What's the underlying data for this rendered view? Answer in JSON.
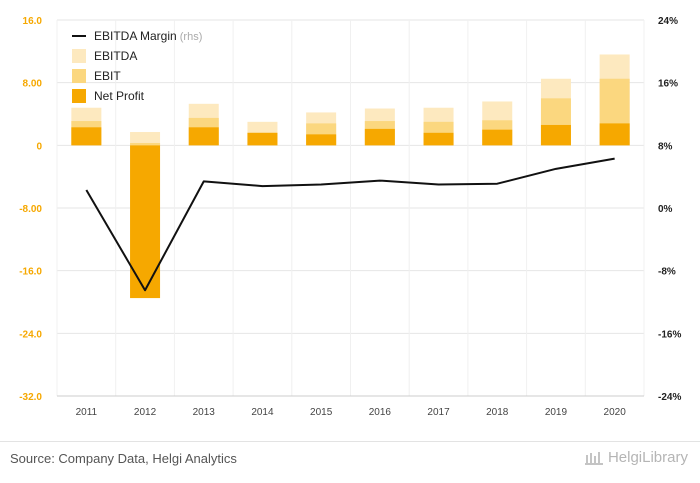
{
  "chart_data": {
    "type": "bar",
    "categories": [
      "2011",
      "2012",
      "2013",
      "2014",
      "2015",
      "2016",
      "2017",
      "2018",
      "2019",
      "2020"
    ],
    "series": [
      {
        "name": "Net Profit",
        "kind": "bar",
        "axis": "left",
        "color": "#f6a800",
        "values": [
          2.3,
          -19.5,
          2.3,
          1.6,
          1.4,
          2.1,
          1.6,
          2.0,
          2.6,
          2.8
        ]
      },
      {
        "name": "EBIT",
        "kind": "bar",
        "axis": "left",
        "color": "#fbd77f",
        "values": [
          3.1,
          0.3,
          3.5,
          1.6,
          2.8,
          3.1,
          3.0,
          3.2,
          6.0,
          8.5
        ]
      },
      {
        "name": "EBITDA",
        "kind": "bar",
        "axis": "left",
        "color": "#fde9bf",
        "values": [
          4.8,
          1.7,
          5.3,
          3.0,
          4.2,
          4.7,
          4.8,
          5.6,
          8.5,
          11.6
        ]
      },
      {
        "name": "EBITDA Margin",
        "kind": "line",
        "axis": "right",
        "color": "#111111",
        "values": [
          2.3,
          -10.5,
          3.4,
          2.8,
          3.0,
          3.5,
          3.0,
          3.1,
          5.0,
          6.3
        ]
      }
    ],
    "legend": [
      {
        "label": "EBITDA Margin",
        "suffix": "(rhs)",
        "type": "line",
        "color": "#111111"
      },
      {
        "label": "EBITDA",
        "type": "box",
        "color": "#fde9bf"
      },
      {
        "label": "EBIT",
        "type": "box",
        "color": "#fbd77f"
      },
      {
        "label": "Net Profit",
        "type": "box",
        "color": "#f6a800"
      }
    ],
    "legend_position": "top-left",
    "y_left": {
      "min": -32,
      "max": 16,
      "ticks": [
        16,
        8,
        0,
        -8,
        -16,
        -24,
        -32
      ],
      "tick_labels": [
        "16.0",
        "8.00",
        "0",
        "-8.00",
        "-16.0",
        "-24.0",
        "-32.0"
      ]
    },
    "y_right": {
      "min": -24,
      "max": 24,
      "ticks": [
        24,
        16,
        8,
        0,
        -8,
        -16,
        -24
      ],
      "tick_labels": [
        "24%",
        "16%",
        "8%",
        "0%",
        "-8%",
        "-16%",
        "-24%"
      ]
    },
    "grid": true,
    "title": "",
    "xlabel": "",
    "ylabel": ""
  },
  "footer": {
    "source": "Source: Company Data, Helgi Analytics",
    "brand": "HelgiLibrary"
  }
}
